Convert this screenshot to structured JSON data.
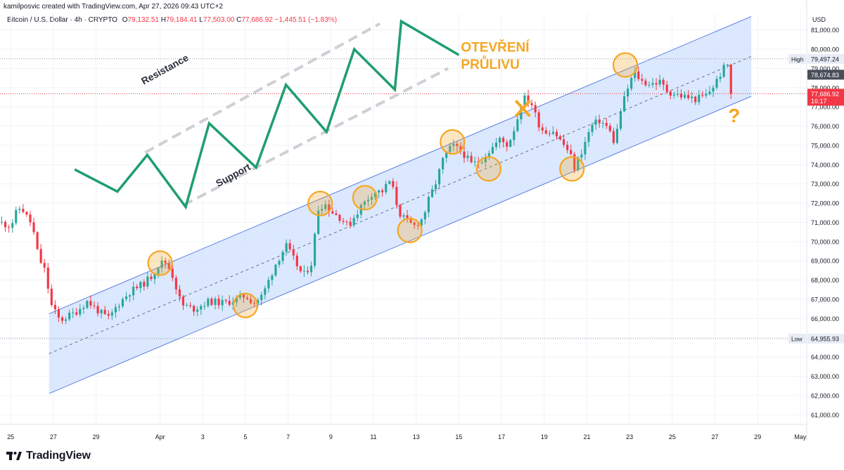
{
  "header": {
    "credit": "kamilposvic created with TradingView.com, Apr 27, 2026 09:43 UTC+2",
    "symbol": "Bitcoin / U.S. Dollar · 4h · CRYPTO",
    "open_label": "O",
    "open": "79,132.51",
    "high_label": "H",
    "high": "79,184.41",
    "low_label": "L",
    "low": "77,503.00",
    "close_label": "C",
    "close": "77,686.92",
    "change": "−1,445.51 (−1.83%)"
  },
  "branding": {
    "logo_text": "TradingView"
  },
  "colors": {
    "up": "#26a69a",
    "down": "#f23645",
    "channel_fill": "#cfe0fd",
    "channel_line": "#5b7fe0",
    "annotation_orange": "#f5a623",
    "zigzag_green": "#1f9e6e"
  },
  "chart_data": {
    "type": "candlestick",
    "symbol": "Bitcoin / U.S. Dollar",
    "interval": "4h",
    "currency_label": "USD",
    "y_ticks": [
      "61,000.00",
      "62,000.00",
      "63,000.00",
      "64,000.00",
      "65,000.00",
      "66,000.00",
      "67,000.00",
      "68,000.00",
      "69,000.00",
      "70,000.00",
      "71,000.00",
      "72,000.00",
      "73,000.00",
      "74,000.00",
      "75,000.00",
      "76,000.00",
      "77,000.00",
      "78,000.00",
      "79,000.00",
      "80,000.00",
      "81,000.00"
    ],
    "ylim": [
      60500,
      81900
    ],
    "x_ticks": [
      "25",
      "27",
      "29",
      "Apr",
      "3",
      "5",
      "7",
      "9",
      "11",
      "13",
      "15",
      "17",
      "19",
      "21",
      "23",
      "25",
      "27",
      "29",
      "May"
    ],
    "x_range_days": [
      -0.5,
      37.3
    ],
    "x_tick_days": [
      0,
      2,
      4,
      7,
      9,
      11,
      13,
      15,
      17,
      19,
      21,
      23,
      25,
      27,
      29,
      31,
      33,
      35,
      37
    ],
    "price_markers": [
      {
        "label": "High",
        "value": "79,497.24",
        "price": 79497.24
      },
      {
        "label": "Low",
        "value": "64,955.93",
        "price": 64955.93
      }
    ],
    "last_price": {
      "value": "77,686.92",
      "countdown": "16:17",
      "price": 77686.92
    },
    "prev_price": {
      "value": "78,674.83",
      "price": 78674.83
    },
    "channel": {
      "upper": [
        [
          1.8,
          66250
        ],
        [
          34.7,
          81700
        ]
      ],
      "lower": [
        [
          1.8,
          62100
        ],
        [
          34.7,
          77550
        ]
      ]
    },
    "waypoints": [
      [
        -0.5,
        71000
      ],
      [
        0,
        70800
      ],
      [
        0.3,
        71600
      ],
      [
        0.5,
        71800
      ],
      [
        0.8,
        71200
      ],
      [
        1.0,
        70900
      ],
      [
        1.3,
        69200
      ],
      [
        1.6,
        68500
      ],
      [
        1.9,
        66700
      ],
      [
        2.3,
        65900
      ],
      [
        3.0,
        66300
      ],
      [
        3.6,
        66900
      ],
      [
        4.2,
        66300
      ],
      [
        4.6,
        66000
      ],
      [
        5.0,
        66700
      ],
      [
        5.6,
        67400
      ],
      [
        6.2,
        67800
      ],
      [
        6.6,
        68200
      ],
      [
        7.0,
        68900
      ],
      [
        7.3,
        68900
      ],
      [
        7.6,
        68200
      ],
      [
        8.0,
        66700
      ],
      [
        8.6,
        66500
      ],
      [
        9.3,
        66900
      ],
      [
        10.0,
        66800
      ],
      [
        10.6,
        67000
      ],
      [
        11.0,
        67200
      ],
      [
        11.4,
        66800
      ],
      [
        11.8,
        67200
      ],
      [
        12.4,
        68800
      ],
      [
        12.9,
        69800
      ],
      [
        13.3,
        69000
      ],
      [
        13.7,
        68200
      ],
      [
        14.1,
        68900
      ],
      [
        14.4,
        71700
      ],
      [
        14.7,
        72000
      ],
      [
        15.0,
        71600
      ],
      [
        15.5,
        71200
      ],
      [
        15.8,
        70800
      ],
      [
        16.4,
        71800
      ],
      [
        17.0,
        72600
      ],
      [
        17.4,
        72600
      ],
      [
        17.8,
        73200
      ],
      [
        18.2,
        71500
      ],
      [
        18.6,
        71000
      ],
      [
        18.9,
        70800
      ],
      [
        19.3,
        71200
      ],
      [
        19.6,
        72200
      ],
      [
        19.9,
        73000
      ],
      [
        20.3,
        74400
      ],
      [
        20.7,
        75000
      ],
      [
        21.2,
        74600
      ],
      [
        21.6,
        74000
      ],
      [
        22.0,
        74200
      ],
      [
        22.5,
        74800
      ],
      [
        22.9,
        75300
      ],
      [
        23.3,
        75000
      ],
      [
        23.7,
        76200
      ],
      [
        24.0,
        77500
      ],
      [
        24.4,
        77200
      ],
      [
        24.7,
        76200
      ],
      [
        25.0,
        75700
      ],
      [
        25.4,
        75800
      ],
      [
        25.8,
        75200
      ],
      [
        26.2,
        74600
      ],
      [
        26.4,
        73800
      ],
      [
        26.8,
        74800
      ],
      [
        27.2,
        76000
      ],
      [
        27.6,
        76300
      ],
      [
        28.0,
        75900
      ],
      [
        28.3,
        75100
      ],
      [
        28.6,
        76900
      ],
      [
        28.9,
        77900
      ],
      [
        29.2,
        78800
      ],
      [
        29.6,
        78300
      ],
      [
        30.0,
        78200
      ],
      [
        30.4,
        78300
      ],
      [
        30.8,
        77800
      ],
      [
        31.3,
        77600
      ],
      [
        31.7,
        77500
      ],
      [
        32.1,
        77400
      ],
      [
        32.6,
        77600
      ],
      [
        33.0,
        78200
      ],
      [
        33.4,
        79000
      ],
      [
        33.6,
        79200
      ],
      [
        33.8,
        77700
      ]
    ],
    "annotations": {
      "texts": [
        {
          "text": "OTEVŘENÍ",
          "day": 21.1,
          "price": 79880
        },
        {
          "text": "PRŮLIVU",
          "day": 21.1,
          "price": 78980
        },
        {
          "text": "Resistance",
          "day": 7.3,
          "price": 78800
        },
        {
          "text": "Support",
          "day": 10.5,
          "price": 73300
        },
        {
          "text": "?",
          "day": 33.9,
          "price": 76200
        }
      ],
      "circles": [
        [
          7.0,
          68880
        ],
        [
          11.0,
          66680
        ],
        [
          14.5,
          71980
        ],
        [
          16.6,
          72280
        ],
        [
          18.7,
          70580
        ],
        [
          20.7,
          75180
        ],
        [
          22.4,
          73780
        ],
        [
          26.3,
          73780
        ],
        [
          28.8,
          79180
        ]
      ],
      "cross": [
        24.0,
        76920
      ],
      "zigzag": [
        [
          3.0,
          73750
        ],
        [
          5.0,
          72600
        ],
        [
          6.4,
          74500
        ],
        [
          8.2,
          71800
        ],
        [
          9.3,
          76150
        ],
        [
          11.5,
          73850
        ],
        [
          12.9,
          78150
        ],
        [
          14.8,
          75700
        ],
        [
          16.1,
          80000
        ],
        [
          18.0,
          77900
        ],
        [
          18.3,
          81450
        ],
        [
          21.0,
          79700
        ]
      ],
      "dashed_resistance": [
        [
          6.3,
          74630
        ],
        [
          17.3,
          81330
        ]
      ],
      "dashed_support": [
        [
          8.1,
          71900
        ],
        [
          20.5,
          79000
        ]
      ]
    }
  }
}
